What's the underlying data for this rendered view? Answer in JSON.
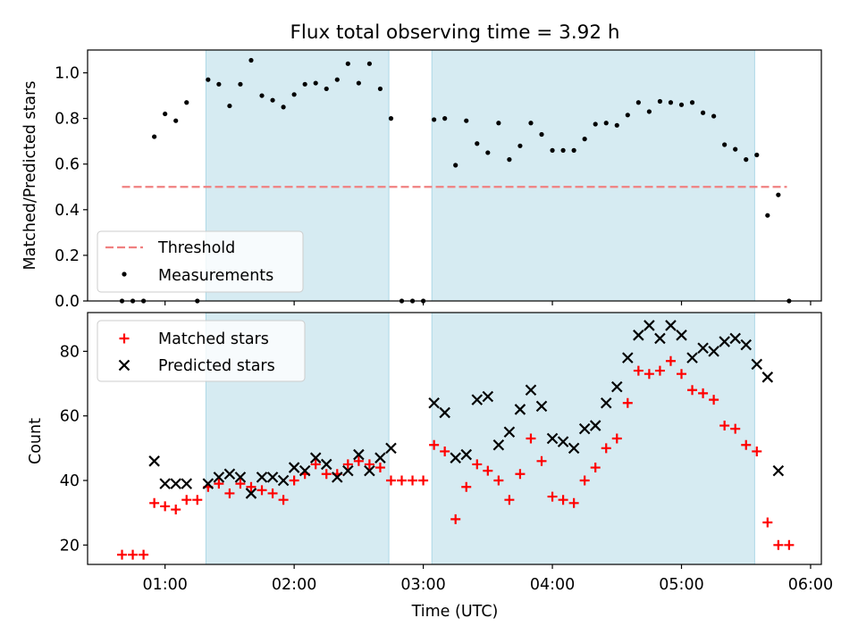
{
  "title": "Flux total observing time = 3.92 h",
  "colors": {
    "shade": "#add8e6",
    "threshold": "#f08080",
    "measurements": "#000000",
    "matched": "#ff0000",
    "predicted": "#000000"
  },
  "chart_data": [
    {
      "type": "scatter",
      "panel": "top",
      "ylabel": "Matched/Predicted stars",
      "ylim": [
        0,
        1.1
      ],
      "yticks": [
        0.0,
        0.2,
        0.4,
        0.6,
        0.8,
        1.0
      ],
      "ytick_labels": [
        "0.0",
        "0.2",
        "0.4",
        "0.6",
        "0.8",
        "1.0"
      ],
      "xlim": [
        "00:24",
        "06:05"
      ],
      "shaded_intervals": [
        [
          "01:19",
          "02:44"
        ],
        [
          "03:04",
          "05:34"
        ]
      ],
      "legend": {
        "position": "lower-left",
        "entries": [
          "Threshold",
          "Measurements"
        ]
      },
      "threshold": {
        "name": "Threshold",
        "y": 0.5,
        "x_range": [
          "00:40",
          "05:49"
        ],
        "style": "dashed"
      },
      "series": [
        {
          "name": "Measurements",
          "marker": "dot",
          "points": [
            [
              "00:40",
              0.0
            ],
            [
              "00:45",
              0.0
            ],
            [
              "00:50",
              0.0
            ],
            [
              "00:55",
              0.72
            ],
            [
              "01:00",
              0.82
            ],
            [
              "01:05",
              0.79
            ],
            [
              "01:10",
              0.87
            ],
            [
              "01:15",
              0.0
            ],
            [
              "01:20",
              0.97
            ],
            [
              "01:25",
              0.95
            ],
            [
              "01:30",
              0.855
            ],
            [
              "01:35",
              0.95
            ],
            [
              "01:40",
              1.055
            ],
            [
              "01:45",
              0.9
            ],
            [
              "01:50",
              0.88
            ],
            [
              "01:55",
              0.85
            ],
            [
              "02:00",
              0.905
            ],
            [
              "02:05",
              0.95
            ],
            [
              "02:10",
              0.955
            ],
            [
              "02:15",
              0.93
            ],
            [
              "02:20",
              0.97
            ],
            [
              "02:25",
              1.04
            ],
            [
              "02:30",
              0.955
            ],
            [
              "02:35",
              1.04
            ],
            [
              "02:40",
              0.93
            ],
            [
              "02:45",
              0.8
            ],
            [
              "02:50",
              0.0
            ],
            [
              "02:55",
              0.0
            ],
            [
              "03:00",
              0.0
            ],
            [
              "03:05",
              0.795
            ],
            [
              "03:10",
              0.8
            ],
            [
              "03:15",
              0.595
            ],
            [
              "03:20",
              0.79
            ],
            [
              "03:25",
              0.69
            ],
            [
              "03:30",
              0.65
            ],
            [
              "03:35",
              0.78
            ],
            [
              "03:40",
              0.62
            ],
            [
              "03:45",
              0.68
            ],
            [
              "03:50",
              0.78
            ],
            [
              "03:55",
              0.73
            ],
            [
              "04:00",
              0.66
            ],
            [
              "04:05",
              0.66
            ],
            [
              "04:10",
              0.66
            ],
            [
              "04:15",
              0.71
            ],
            [
              "04:20",
              0.775
            ],
            [
              "04:25",
              0.78
            ],
            [
              "04:30",
              0.77
            ],
            [
              "04:35",
              0.815
            ],
            [
              "04:40",
              0.87
            ],
            [
              "04:45",
              0.83
            ],
            [
              "04:50",
              0.875
            ],
            [
              "04:55",
              0.87
            ],
            [
              "05:00",
              0.86
            ],
            [
              "05:05",
              0.87
            ],
            [
              "05:10",
              0.825
            ],
            [
              "05:15",
              0.81
            ],
            [
              "05:20",
              0.685
            ],
            [
              "05:25",
              0.665
            ],
            [
              "05:30",
              0.62
            ],
            [
              "05:35",
              0.64
            ],
            [
              "05:40",
              0.375
            ],
            [
              "05:45",
              0.465
            ],
            [
              "05:50",
              0.0
            ]
          ]
        }
      ]
    },
    {
      "type": "scatter",
      "panel": "bottom",
      "xlabel": "Time (UTC)",
      "ylabel": "Count",
      "ylim": [
        14,
        92
      ],
      "yticks": [
        20,
        40,
        60,
        80
      ],
      "ytick_labels": [
        "20",
        "40",
        "60",
        "80"
      ],
      "xlim": [
        "00:24",
        "06:05"
      ],
      "xticks": [
        "01:00",
        "02:00",
        "03:00",
        "04:00",
        "05:00",
        "06:00"
      ],
      "xtick_labels": [
        "01:00",
        "02:00",
        "03:00",
        "04:00",
        "05:00",
        "06:00"
      ],
      "shaded_intervals": [
        [
          "01:19",
          "02:44"
        ],
        [
          "03:04",
          "05:34"
        ]
      ],
      "legend": {
        "position": "upper-left",
        "entries": [
          "Matched stars",
          "Predicted stars"
        ]
      },
      "series": [
        {
          "name": "Matched stars",
          "marker": "plus",
          "points": [
            [
              "00:40",
              17
            ],
            [
              "00:45",
              17
            ],
            [
              "00:50",
              17
            ],
            [
              "00:55",
              33
            ],
            [
              "01:00",
              32
            ],
            [
              "01:05",
              31
            ],
            [
              "01:10",
              34
            ],
            [
              "01:15",
              34
            ],
            [
              "01:20",
              38
            ],
            [
              "01:25",
              39
            ],
            [
              "01:30",
              36
            ],
            [
              "01:35",
              39
            ],
            [
              "01:40",
              38
            ],
            [
              "01:45",
              37
            ],
            [
              "01:50",
              36
            ],
            [
              "01:55",
              34
            ],
            [
              "02:00",
              40
            ],
            [
              "02:05",
              42
            ],
            [
              "02:10",
              45
            ],
            [
              "02:15",
              42
            ],
            [
              "02:20",
              42
            ],
            [
              "02:25",
              45
            ],
            [
              "02:30",
              46
            ],
            [
              "02:35",
              45
            ],
            [
              "02:40",
              44
            ],
            [
              "02:45",
              40
            ],
            [
              "02:50",
              40
            ],
            [
              "02:55",
              40
            ],
            [
              "03:00",
              40
            ],
            [
              "03:05",
              51
            ],
            [
              "03:10",
              49
            ],
            [
              "03:15",
              28
            ],
            [
              "03:20",
              38
            ],
            [
              "03:25",
              45
            ],
            [
              "03:30",
              43
            ],
            [
              "03:35",
              40
            ],
            [
              "03:40",
              34
            ],
            [
              "03:45",
              42
            ],
            [
              "03:50",
              53
            ],
            [
              "03:55",
              46
            ],
            [
              "04:00",
              35
            ],
            [
              "04:05",
              34
            ],
            [
              "04:10",
              33
            ],
            [
              "04:15",
              40
            ],
            [
              "04:20",
              44
            ],
            [
              "04:25",
              50
            ],
            [
              "04:30",
              53
            ],
            [
              "04:35",
              64
            ],
            [
              "04:40",
              74
            ],
            [
              "04:45",
              73
            ],
            [
              "04:50",
              74
            ],
            [
              "04:55",
              77
            ],
            [
              "05:00",
              73
            ],
            [
              "05:05",
              68
            ],
            [
              "05:10",
              67
            ],
            [
              "05:15",
              65
            ],
            [
              "05:20",
              57
            ],
            [
              "05:25",
              56
            ],
            [
              "05:30",
              51
            ],
            [
              "05:35",
              49
            ],
            [
              "05:40",
              27
            ],
            [
              "05:45",
              20
            ],
            [
              "05:50",
              20
            ]
          ]
        },
        {
          "name": "Predicted stars",
          "marker": "x",
          "points": [
            [
              "00:55",
              46
            ],
            [
              "01:00",
              39
            ],
            [
              "01:05",
              39
            ],
            [
              "01:10",
              39
            ],
            [
              "01:20",
              39
            ],
            [
              "01:25",
              41
            ],
            [
              "01:30",
              42
            ],
            [
              "01:35",
              41
            ],
            [
              "01:40",
              36
            ],
            [
              "01:45",
              41
            ],
            [
              "01:50",
              41
            ],
            [
              "01:55",
              40
            ],
            [
              "02:00",
              44
            ],
            [
              "02:05",
              43
            ],
            [
              "02:10",
              47
            ],
            [
              "02:15",
              45
            ],
            [
              "02:20",
              41
            ],
            [
              "02:25",
              43
            ],
            [
              "02:30",
              48
            ],
            [
              "02:35",
              43
            ],
            [
              "02:40",
              47
            ],
            [
              "02:45",
              50
            ],
            [
              "03:05",
              64
            ],
            [
              "03:10",
              61
            ],
            [
              "03:15",
              47
            ],
            [
              "03:20",
              48
            ],
            [
              "03:25",
              65
            ],
            [
              "03:30",
              66
            ],
            [
              "03:35",
              51
            ],
            [
              "03:40",
              55
            ],
            [
              "03:45",
              62
            ],
            [
              "03:50",
              68
            ],
            [
              "03:55",
              63
            ],
            [
              "04:00",
              53
            ],
            [
              "04:05",
              52
            ],
            [
              "04:10",
              50
            ],
            [
              "04:15",
              56
            ],
            [
              "04:20",
              57
            ],
            [
              "04:25",
              64
            ],
            [
              "04:30",
              69
            ],
            [
              "04:35",
              78
            ],
            [
              "04:40",
              85
            ],
            [
              "04:45",
              88
            ],
            [
              "04:50",
              84
            ],
            [
              "04:55",
              88
            ],
            [
              "05:00",
              85
            ],
            [
              "05:05",
              78
            ],
            [
              "05:10",
              81
            ],
            [
              "05:15",
              80
            ],
            [
              "05:20",
              83
            ],
            [
              "05:25",
              84
            ],
            [
              "05:30",
              82
            ],
            [
              "05:35",
              76
            ],
            [
              "05:40",
              72
            ],
            [
              "05:45",
              43
            ]
          ]
        }
      ]
    }
  ]
}
